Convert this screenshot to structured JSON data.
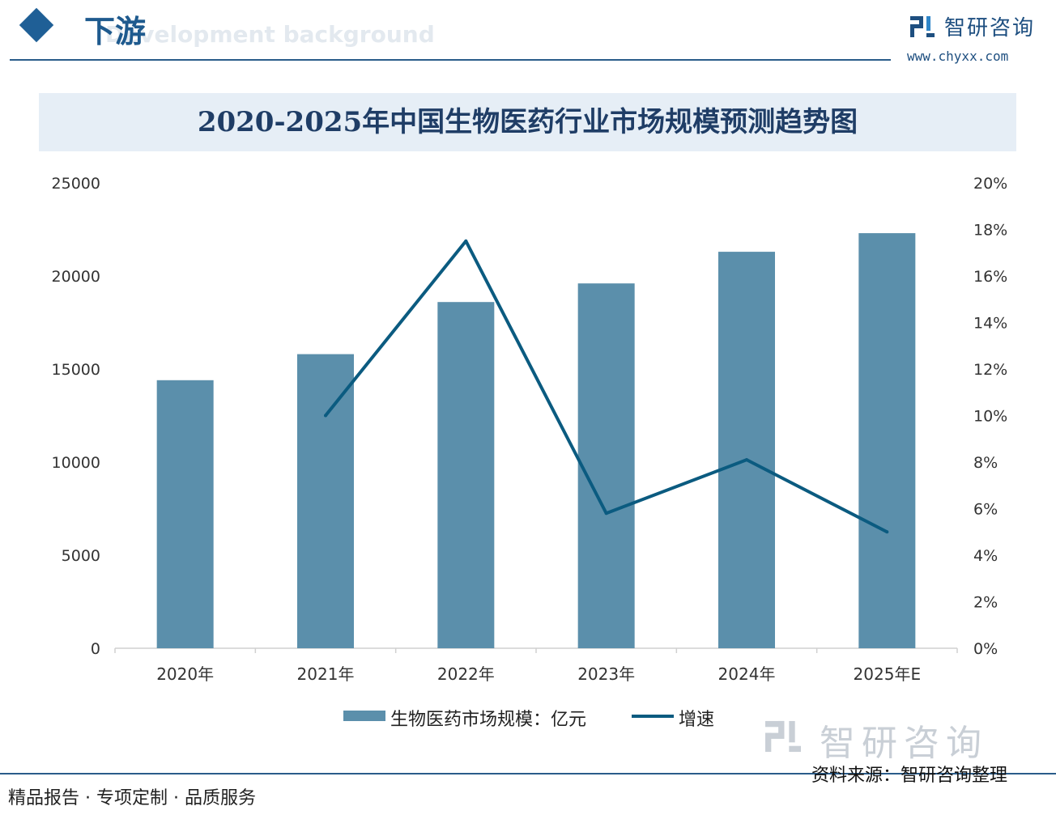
{
  "header": {
    "section_title": "下游",
    "section_subtitle": "Development background",
    "brand_name": "智研咨询",
    "brand_url": "www.chyxx.com"
  },
  "colors": {
    "bar": "#5b8fab",
    "line": "#0b5b80",
    "title_band": "#e6eef6",
    "rule": "#2a5c8a"
  },
  "chart_data": {
    "type": "bar",
    "title": "2020-2025年中国生物医药行业市场规模预测趋势图",
    "categories": [
      "2020年",
      "2021年",
      "2022年",
      "2023年",
      "2024年",
      "2025年E"
    ],
    "series": [
      {
        "name": "生物医药市场规模：亿元",
        "type": "bar",
        "axis": "left",
        "values": [
          14400,
          15800,
          18600,
          19600,
          21300,
          22300
        ]
      },
      {
        "name": "增速",
        "type": "line",
        "axis": "right",
        "values": [
          null,
          10.0,
          17.5,
          5.8,
          8.1,
          5.0
        ]
      }
    ],
    "y_left": {
      "min": 0,
      "max": 25000,
      "ticks": [
        "0",
        "5000",
        "10000",
        "15000",
        "20000",
        "25000"
      ]
    },
    "y_right": {
      "min": 0,
      "max": 20,
      "ticks": [
        "0%",
        "2%",
        "4%",
        "6%",
        "8%",
        "10%",
        "12%",
        "14%",
        "16%",
        "18%",
        "20%"
      ]
    },
    "grid": false,
    "legend_position": "bottom"
  },
  "footer": {
    "left": "精品报告 · 专项定制 · 品质服务",
    "source": "资料来源：智研咨询整理",
    "watermark": "智研咨询"
  }
}
